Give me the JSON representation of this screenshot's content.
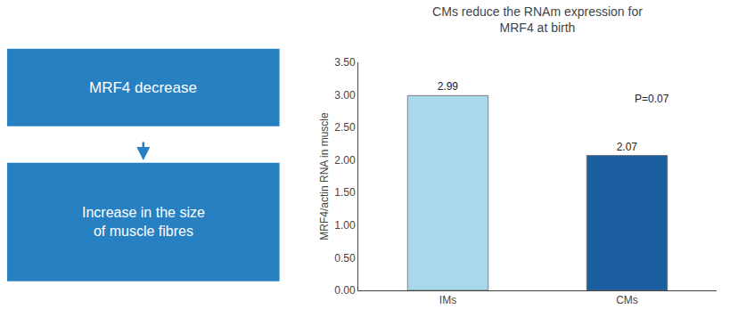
{
  "chart_data": {
    "type": "bar",
    "title": "CMs reduce the RNAm expression for\nMRF4 at birth",
    "ylabel": "MRF4/actin RNA in muscle",
    "categories": [
      "IMs",
      "CMs"
    ],
    "values": [
      2.99,
      2.07
    ],
    "colors": [
      "#A8D8EA",
      "#1B5FA0"
    ],
    "data_labels": true,
    "ylim": [
      0,
      3.5
    ],
    "yticks": [
      {
        "value": 0.0,
        "label": "0.00"
      },
      {
        "value": 0.5,
        "label": "0.50"
      },
      {
        "value": 1.0,
        "label": "1.00"
      },
      {
        "value": 1.5,
        "label": "1.50"
      },
      {
        "value": 2.0,
        "label": "2.00"
      },
      {
        "value": 2.5,
        "label": "2.50"
      },
      {
        "value": 3.0,
        "label": "3.00"
      },
      {
        "value": 3.5,
        "label": "3.50"
      }
    ],
    "grid": false,
    "annotations": [
      {
        "text": "P=0.07"
      },
      {
        "text": "MRF4 decrease",
        "color": "#2680C2"
      },
      {
        "text": "Increase in the size\nof muscle fibres",
        "color": "#2680C2"
      }
    ]
  }
}
